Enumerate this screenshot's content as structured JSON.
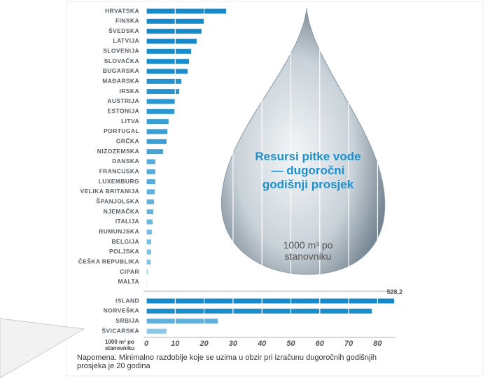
{
  "chart_data": [
    {
      "type": "bar",
      "orientation": "horizontal",
      "title": "Resursi pitke vode — dugoročni godišnji prosjek",
      "subtitle": "1000 m³ po stanovniku",
      "categories": [
        "HRVATSKA",
        "FINSKA",
        "ŠVEDSKA",
        "LATVIJA",
        "SLOVENIJA",
        "SLOVAČKA",
        "BUGARSKA",
        "MAĐARSKA",
        "IRSKA",
        "AUSTRIJA",
        "ESTONIJA",
        "LITVA",
        "PORTUGAL",
        "GRČKA",
        "NIZOZEMSKA",
        "DANSKA",
        "FRANCUSKA",
        "LUXEMBURG",
        "VELIKA BRITANIJA",
        "ŠPANJOLSKA",
        "NJEMAČKA",
        "ITALIJA",
        "RUMUNJSKA",
        "BELGIJA",
        "POLJSKA",
        "ČEŠKA REPUBLIKA",
        "CIPAR",
        "MALTA"
      ],
      "values": [
        27.6,
        19.9,
        19.1,
        17.4,
        15.5,
        14.8,
        14.3,
        12.1,
        11.4,
        9.9,
        9.7,
        7.7,
        7.3,
        7.0,
        5.8,
        3.1,
        3.1,
        3.1,
        2.9,
        2.7,
        2.4,
        2.2,
        1.9,
        1.7,
        1.7,
        1.5,
        0.5,
        0.2
      ],
      "colors": [
        "#1789c8",
        "#1789c8",
        "#1789c8",
        "#1789c8",
        "#1b8dcb",
        "#1b8dcb",
        "#1b8dcb",
        "#2592cd",
        "#2592cd",
        "#2a96cf",
        "#2a96cf",
        "#3a9ed3",
        "#3a9ed3",
        "#3a9ed3",
        "#45a3d5",
        "#55abd9",
        "#55abd9",
        "#55abd9",
        "#5fb0db",
        "#5fb0db",
        "#66b4dd",
        "#6db8df",
        "#74bbe0",
        "#7bbfe2",
        "#7bbfe2",
        "#84c3e4",
        "#8cc8e6",
        "#94cce8"
      ],
      "xlim": [
        0,
        86
      ]
    },
    {
      "type": "bar",
      "orientation": "horizontal",
      "categories": [
        "ISLAND",
        "NORVEŠKA",
        "SRBIJA",
        "ŠVICARSKA"
      ],
      "values": [
        528.2,
        78,
        24.7,
        7.0
      ],
      "value_labels": [
        "528,2",
        null,
        null,
        null
      ],
      "colors": [
        "#1789c8",
        "#1b8dcb",
        "#5fb0db",
        "#8cc8e6"
      ],
      "xlabel": "1000 m³ po stanovniku",
      "xlim": [
        0,
        86
      ],
      "xticks": [
        0,
        10,
        20,
        30,
        40,
        50,
        60,
        70,
        80
      ],
      "note": "Napomena: Minimalno razdoblje koje se uzima u obzir pri izračunu dugoročnih godišnjih prosjeka je 20 godina"
    }
  ]
}
